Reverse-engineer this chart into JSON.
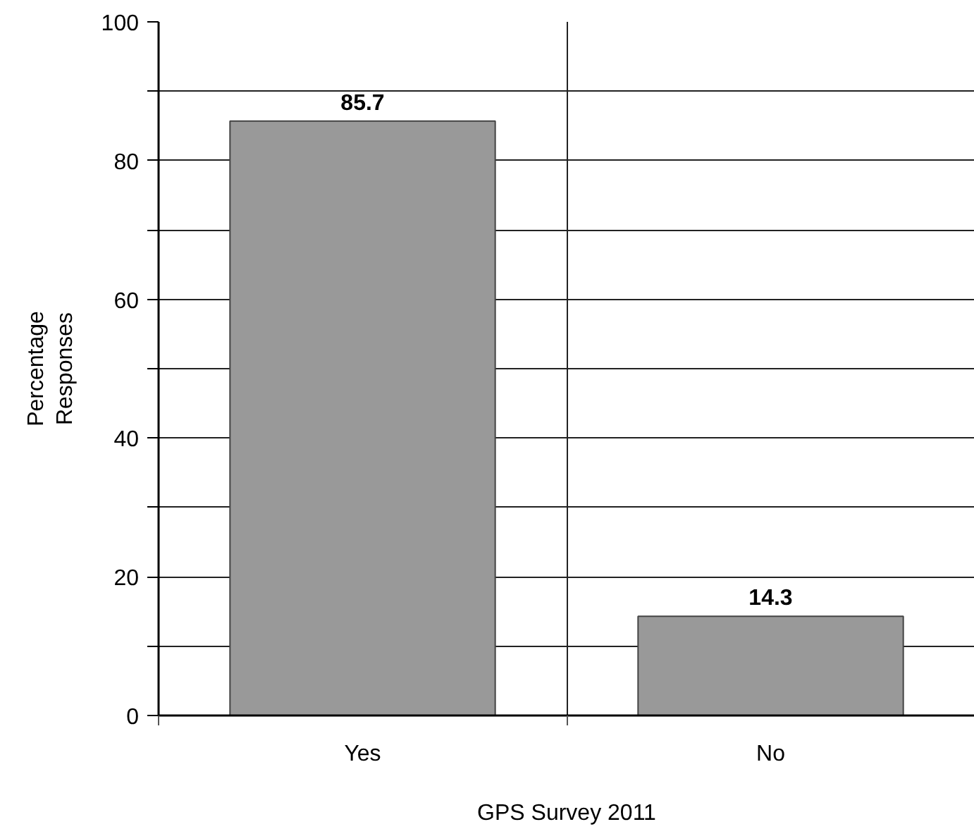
{
  "chart_data": {
    "type": "bar",
    "xlabel": "GPS Survey 2011",
    "ylabel": "Percentage Responses",
    "categories": [
      "Yes",
      "No"
    ],
    "values": [
      85.7,
      14.3
    ],
    "color": "#999999",
    "ylim": [
      0,
      100
    ],
    "yticks": [
      0,
      {
        "value": 10,
        "label": null
      },
      20,
      {
        "value": 30,
        "label": null
      },
      40,
      {
        "value": 50,
        "label": null
      },
      60,
      {
        "value": 70,
        "label": null
      },
      80,
      {
        "value": 90,
        "label": null
      },
      100
    ],
    "grid": true,
    "data_labels": true
  }
}
